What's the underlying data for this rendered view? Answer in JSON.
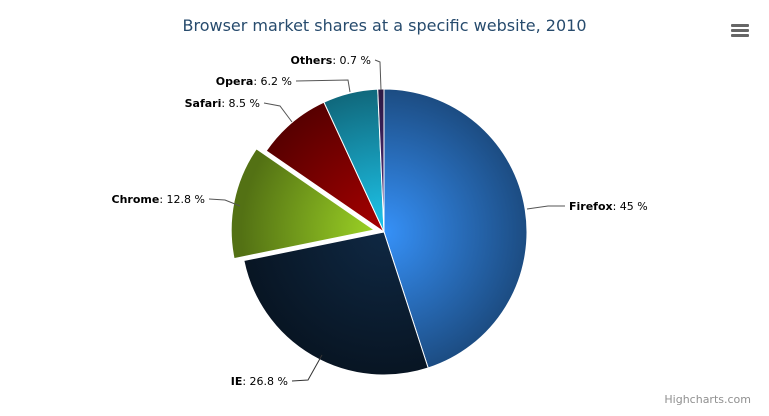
{
  "chart_data": {
    "type": "pie",
    "title": "Browser market shares at a specific website, 2010",
    "unit": "%",
    "slices": [
      {
        "name": "Firefox",
        "value": 45,
        "color": "#2f7ed8",
        "sliced": false
      },
      {
        "name": "IE",
        "value": 26.8,
        "color": "#0d233a",
        "sliced": false
      },
      {
        "name": "Chrome",
        "value": 12.8,
        "color": "#8bbc21",
        "sliced": true
      },
      {
        "name": "Safari",
        "value": 8.5,
        "color": "#910000",
        "sliced": false
      },
      {
        "name": "Opera",
        "value": 6.2,
        "color": "#1aadce",
        "sliced": false
      },
      {
        "name": "Others",
        "value": 0.7,
        "color": "#492970",
        "sliced": false
      }
    ],
    "labels": [
      "Firefox: 45 %",
      "IE: 26.8 %",
      "Chrome: 12.8 %",
      "Safari: 8.5 %",
      "Opera: 6.2 %",
      "Others: 0.7 %"
    ]
  },
  "menu_icon": "hamburger-menu-icon",
  "credits": "Highcharts.com"
}
